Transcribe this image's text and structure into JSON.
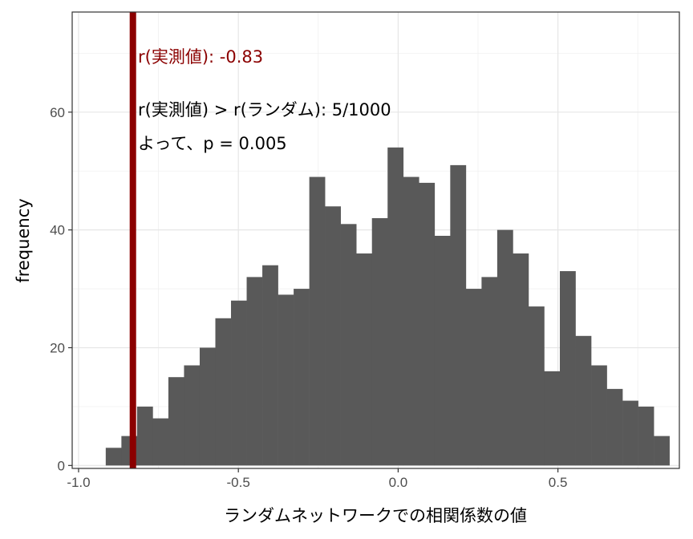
{
  "chart_data": {
    "type": "bar",
    "subtype": "histogram",
    "xlabel": "ランダムネットワークでの相関係数の値",
    "ylabel": "frequency",
    "xlim": [
      -1.02,
      0.88
    ],
    "ylim": [
      -0.5,
      77
    ],
    "xticks": [
      -1.0,
      -0.5,
      0.0,
      0.5
    ],
    "xtick_labels": [
      "-1.0",
      "-0.5",
      "0.0",
      "0.5"
    ],
    "yticks": [
      0,
      20,
      40,
      60
    ],
    "ytick_labels": [
      "0",
      "20",
      "40",
      "60"
    ],
    "grid": true,
    "bin_width": 0.049,
    "bin_starts": [
      -0.915,
      -0.866,
      -0.817,
      -0.768,
      -0.719,
      -0.67,
      -0.621,
      -0.572,
      -0.523,
      -0.474,
      -0.425,
      -0.376,
      -0.327,
      -0.278,
      -0.229,
      -0.18,
      -0.131,
      -0.082,
      -0.033,
      0.016,
      0.065,
      0.114,
      0.163,
      0.212,
      0.261,
      0.31,
      0.359,
      0.408,
      0.457,
      0.506,
      0.555,
      0.604,
      0.653,
      0.702,
      0.751,
      0.8
    ],
    "values": [
      3,
      5,
      10,
      8,
      15,
      17,
      20,
      25,
      28,
      32,
      34,
      29,
      30,
      49,
      44,
      41,
      36,
      42,
      54,
      49,
      48,
      39,
      51,
      30,
      32,
      40,
      36,
      27,
      16,
      33,
      22,
      17,
      13,
      11,
      10,
      5
    ],
    "bar_color": "#595959",
    "observed_r": -0.83,
    "observed_line_color": "#8b0000",
    "annotations": {
      "observed": "r(実測値): -0.83",
      "comparison": "r(実測値) > r(ランダム): 5/1000",
      "pvalue": "よって、p = 0.005"
    },
    "annotation_colors": {
      "observed": "#8b0000",
      "text": "#000000"
    }
  }
}
